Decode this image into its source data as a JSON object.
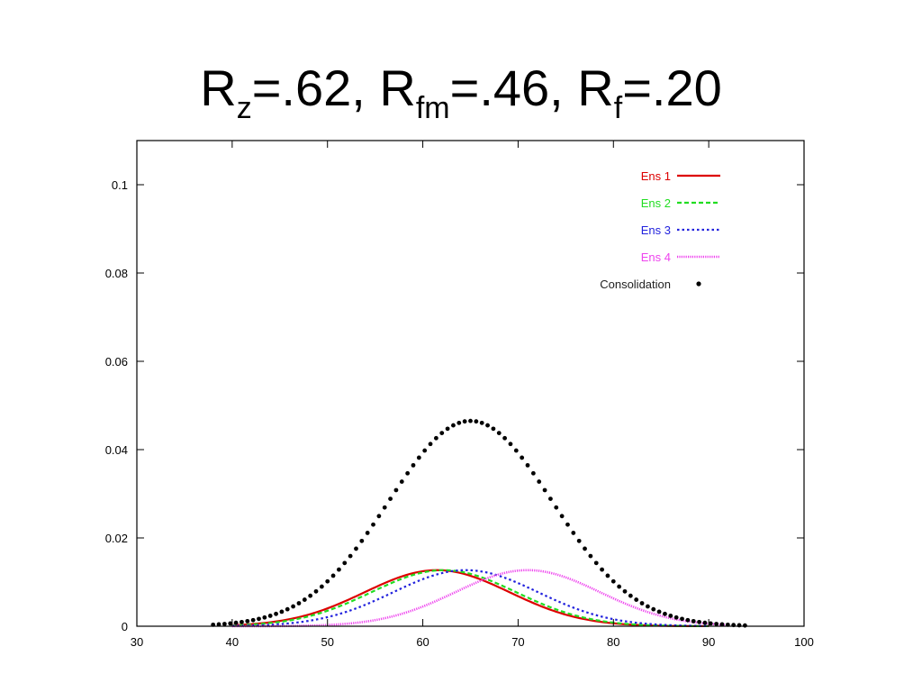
{
  "title": {
    "parts": [
      {
        "base": "R",
        "sub": "z",
        "rest": "=.62, "
      },
      {
        "base": "R",
        "sub": "fm",
        "rest": "=.46, "
      },
      {
        "base": "R",
        "sub": "f",
        "rest": "=.20"
      }
    ]
  },
  "chart_data": {
    "type": "line",
    "xlim": [
      30,
      100
    ],
    "ylim": [
      0,
      0.11
    ],
    "x_ticks": [
      "30",
      "40",
      "50",
      "60",
      "70",
      "80",
      "90",
      "100"
    ],
    "y_ticks": [
      "0",
      "0.02",
      "0.04",
      "0.06",
      "0.08",
      "0.1"
    ],
    "x_tick_values": [
      30,
      40,
      50,
      60,
      70,
      80,
      90,
      100
    ],
    "y_tick_values": [
      0,
      0.02,
      0.04,
      0.06,
      0.08,
      0.1
    ],
    "grid": false,
    "legend_position": "top-right",
    "series": [
      {
        "name": "Ens 1",
        "color": "#dd0000",
        "style": "solid",
        "peak_x": 61.5,
        "peak_y": 0.0127,
        "sigma": 7.6,
        "x_range": [
          40,
          90
        ]
      },
      {
        "name": "Ens 2",
        "color": "#22dd22",
        "style": "dashed",
        "peak_x": 62.2,
        "peak_y": 0.0127,
        "sigma": 7.6,
        "x_range": [
          40,
          90
        ]
      },
      {
        "name": "Ens 3",
        "color": "#2222dd",
        "style": "dotted",
        "peak_x": 64.5,
        "peak_y": 0.0127,
        "sigma": 7.6,
        "x_range": [
          40,
          90
        ]
      },
      {
        "name": "Ens 4",
        "color": "#ee44ee",
        "style": "fine-dotted",
        "peak_x": 71.0,
        "peak_y": 0.0127,
        "sigma": 7.6,
        "x_range": [
          40,
          92
        ]
      },
      {
        "name": "Consolidation",
        "color": "#000000",
        "style": "points",
        "peak_x": 65.0,
        "peak_y": 0.0465,
        "sigma": 8.6,
        "x_range": [
          38,
          94
        ],
        "x_step": 0.6
      }
    ]
  }
}
